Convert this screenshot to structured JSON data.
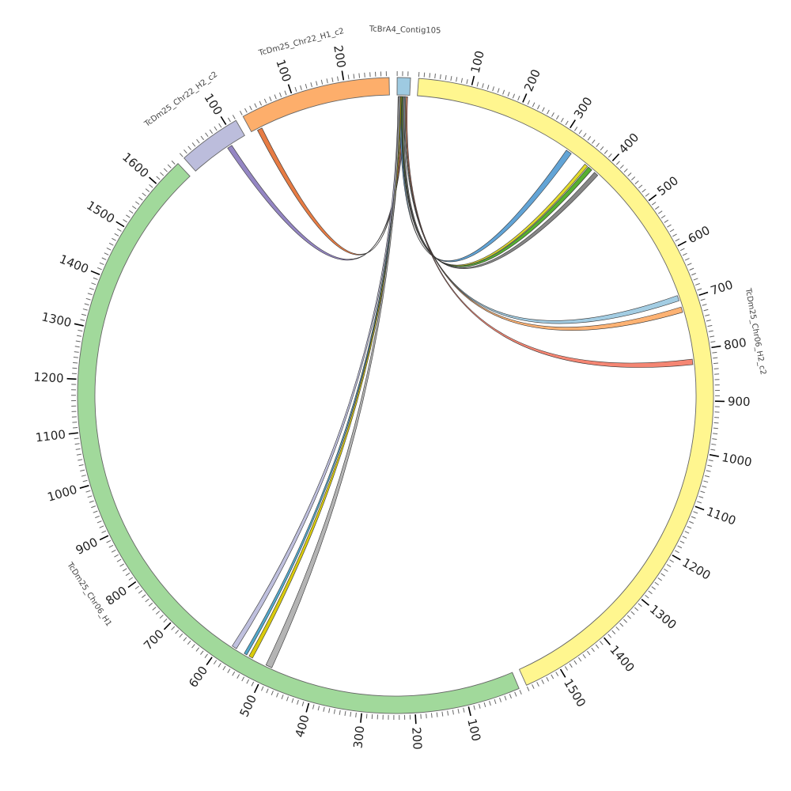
{
  "chart_data": {
    "type": "circos",
    "units_per_degree_note": "tick labels every 100 units, minor ticks every 10 units",
    "major_tick_step": 100,
    "minor_tick_step": 10,
    "chromosomes": [
      {
        "name": "TcBrA4_Contig105",
        "length": 25,
        "color": "#9ecae1"
      },
      {
        "name": "TcDm25_Chr06_H2_c2",
        "length": 1570,
        "color": "#fff68f"
      },
      {
        "name": "TcDm25_Chr06_H1",
        "length": 1655,
        "color": "#a1d99b"
      },
      {
        "name": "TcDm25_Chr22_H2_c2",
        "length": 120,
        "color": "#bcbddc"
      },
      {
        "name": "TcDm25_Chr22_H1_c2",
        "length": 285,
        "color": "#fdae6b"
      }
    ],
    "links": [
      {
        "source": 0,
        "s": [
          14,
          17
        ],
        "target": 3,
        "t": [
          78,
          88
        ],
        "color": "#8e7fc0"
      },
      {
        "source": 0,
        "s": [
          11,
          14
        ],
        "target": 4,
        "t": [
          12,
          22
        ],
        "color": "#e6753a"
      },
      {
        "source": 0,
        "s": [
          6,
          9
        ],
        "target": 1,
        "t": [
          318,
          330
        ],
        "color": "#5a9fd4"
      },
      {
        "source": 0,
        "s": [
          9,
          10
        ],
        "target": 1,
        "t": [
          364,
          371
        ],
        "color": "#e0d820"
      },
      {
        "source": 0,
        "s": [
          10,
          12
        ],
        "target": 1,
        "t": [
          373,
          382
        ],
        "color": "#4dac26"
      },
      {
        "source": 0,
        "s": [
          12,
          15
        ],
        "target": 1,
        "t": [
          389,
          398
        ],
        "color": "#7f7f7f"
      },
      {
        "source": 0,
        "s": [
          15,
          17
        ],
        "target": 1,
        "t": [
          687,
          698
        ],
        "color": "#9ecae1"
      },
      {
        "source": 0,
        "s": [
          17,
          19
        ],
        "target": 1,
        "t": [
          711,
          722
        ],
        "color": "#fdae6b"
      },
      {
        "source": 0,
        "s": [
          19,
          21
        ],
        "target": 1,
        "t": [
          817,
          828
        ],
        "color": "#f4806c"
      },
      {
        "source": 0,
        "s": [
          2,
          5
        ],
        "target": 2,
        "t": [
          570,
          580
        ],
        "color": "#bcbddc"
      },
      {
        "source": 0,
        "s": [
          5,
          7
        ],
        "target": 2,
        "t": [
          546,
          552
        ],
        "color": "#4aa3c8"
      },
      {
        "source": 0,
        "s": [
          7,
          9
        ],
        "target": 2,
        "t": [
          533,
          541
        ],
        "color": "#d8c800"
      },
      {
        "source": 0,
        "s": [
          3,
          6
        ],
        "target": 2,
        "t": [
          490,
          503
        ],
        "color": "#b0b0b0"
      }
    ]
  }
}
